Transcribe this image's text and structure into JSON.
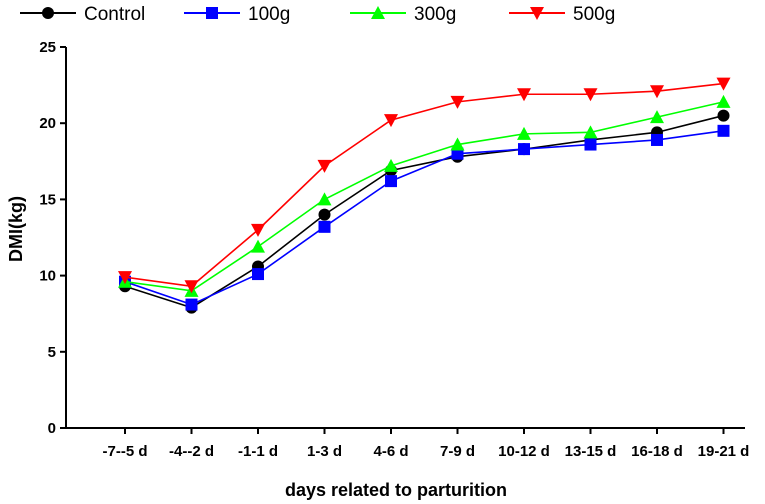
{
  "chart_data": {
    "type": "line",
    "title": "",
    "xlabel": "days related to parturition",
    "ylabel": "DMI(kg)",
    "ylim": [
      0,
      25
    ],
    "yticks": [
      0,
      5,
      10,
      15,
      20,
      25
    ],
    "grid": false,
    "legend_position": "top",
    "categories": [
      "-7--5 d",
      "-4--2 d",
      "-1-1 d",
      "1-3 d",
      "4-6 d",
      "7-9 d",
      "10-12 d",
      "13-15 d",
      "16-18 d",
      "19-21 d"
    ],
    "series": [
      {
        "name": "Control",
        "color": "#000000",
        "marker": "circle",
        "values": [
          9.3,
          7.9,
          10.6,
          14.0,
          16.9,
          17.8,
          18.3,
          18.9,
          19.4,
          20.5
        ]
      },
      {
        "name": "100g",
        "color": "#0000ff",
        "marker": "square",
        "values": [
          9.6,
          8.1,
          10.1,
          13.2,
          16.2,
          18.0,
          18.3,
          18.6,
          18.9,
          19.5
        ]
      },
      {
        "name": "300g",
        "color": "#00ff00",
        "marker": "triangle-up",
        "values": [
          9.6,
          9.0,
          11.9,
          15.0,
          17.2,
          18.6,
          19.3,
          19.4,
          20.4,
          21.4
        ]
      },
      {
        "name": "500g",
        "color": "#ff0000",
        "marker": "triangle-down",
        "values": [
          9.9,
          9.3,
          13.0,
          17.2,
          20.2,
          21.4,
          21.9,
          21.9,
          22.1,
          22.6
        ]
      }
    ]
  }
}
